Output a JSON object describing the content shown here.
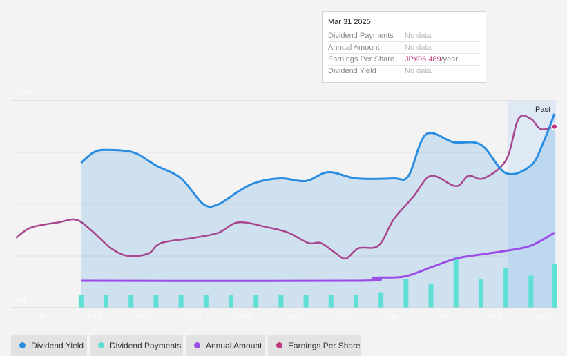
{
  "tooltip": {
    "date": "Mar 31 2025",
    "rows": [
      {
        "label": "Dividend Payments",
        "value": "No data"
      },
      {
        "label": "Annual Amount",
        "value": "No data"
      },
      {
        "label": "Earnings Per Share",
        "value": "JP¥96.489",
        "suffix": "/year"
      },
      {
        "label": "Dividend Yield",
        "value": "No data"
      }
    ]
  },
  "colors": {
    "dividend_yield": "#2a8de0",
    "dividend_payments": "#5fe0d6",
    "annual_amount": "#9b4de8",
    "earnings_per_share": "#a8458f",
    "eps_label": "#c2357c"
  },
  "legend": [
    {
      "label": "Dividend Yield",
      "color": "#2a8de0"
    },
    {
      "label": "Dividend Payments",
      "color": "#5fe0d6"
    },
    {
      "label": "Annual Amount",
      "color": "#9b4de8"
    },
    {
      "label": "Earnings Per Share",
      "color": "#c2357c"
    }
  ],
  "chart_data": {
    "type": "line",
    "y_axis": {
      "top_label": "4.0%",
      "bottom_label": "0%",
      "ylim": [
        0,
        4.0
      ],
      "unit": "%"
    },
    "x_axis": {
      "tick_labels": [
        "2015",
        "2016",
        "2017",
        "2018",
        "2019",
        "2020",
        "2021",
        "2022",
        "2023",
        "2024",
        "2025"
      ],
      "xlim": [
        2014.35,
        2025.25
      ]
    },
    "past_label": "Past",
    "past_start": 2024.28,
    "series": [
      {
        "name": "Dividend Yield",
        "unit": "%",
        "points": [
          [
            2015.75,
            2.8
          ],
          [
            2016.0,
            3.0
          ],
          [
            2016.25,
            3.05
          ],
          [
            2016.8,
            3.0
          ],
          [
            2017.25,
            2.75
          ],
          [
            2017.75,
            2.5
          ],
          [
            2018.2,
            2.0
          ],
          [
            2018.5,
            2.0
          ],
          [
            2018.9,
            2.25
          ],
          [
            2019.25,
            2.42
          ],
          [
            2019.75,
            2.5
          ],
          [
            2020.25,
            2.45
          ],
          [
            2020.7,
            2.62
          ],
          [
            2021.25,
            2.5
          ],
          [
            2022.0,
            2.5
          ],
          [
            2022.3,
            2.55
          ],
          [
            2022.65,
            3.35
          ],
          [
            2023.2,
            3.2
          ],
          [
            2023.75,
            3.15
          ],
          [
            2024.25,
            2.6
          ],
          [
            2024.75,
            2.75
          ],
          [
            2025.0,
            3.2
          ],
          [
            2025.22,
            3.75
          ]
        ]
      },
      {
        "name": "Earnings Per Share",
        "unit": "relative (axis not labeled)",
        "points": [
          [
            2014.45,
            1.35
          ],
          [
            2014.75,
            1.55
          ],
          [
            2015.3,
            1.65
          ],
          [
            2015.65,
            1.7
          ],
          [
            2015.95,
            1.5
          ],
          [
            2016.35,
            1.15
          ],
          [
            2016.7,
            1.0
          ],
          [
            2017.1,
            1.05
          ],
          [
            2017.35,
            1.25
          ],
          [
            2018.0,
            1.35
          ],
          [
            2018.5,
            1.45
          ],
          [
            2018.9,
            1.65
          ],
          [
            2019.5,
            1.55
          ],
          [
            2019.9,
            1.45
          ],
          [
            2020.3,
            1.25
          ],
          [
            2020.55,
            1.25
          ],
          [
            2020.85,
            1.05
          ],
          [
            2021.05,
            0.95
          ],
          [
            2021.3,
            1.15
          ],
          [
            2021.7,
            1.2
          ],
          [
            2022.0,
            1.7
          ],
          [
            2022.4,
            2.15
          ],
          [
            2022.75,
            2.55
          ],
          [
            2023.25,
            2.35
          ],
          [
            2023.5,
            2.55
          ],
          [
            2023.8,
            2.5
          ],
          [
            2024.25,
            2.85
          ],
          [
            2024.5,
            3.65
          ],
          [
            2024.75,
            3.65
          ],
          [
            2024.95,
            3.45
          ],
          [
            2025.22,
            3.5
          ]
        ]
      },
      {
        "name": "Annual Amount",
        "unit": "relative (axis not labeled)",
        "points": [
          [
            2015.75,
            0.52
          ],
          [
            2021.25,
            0.52
          ],
          [
            2021.6,
            0.58
          ],
          [
            2022.2,
            0.6
          ],
          [
            2022.75,
            0.78
          ],
          [
            2023.25,
            0.95
          ],
          [
            2023.75,
            1.03
          ],
          [
            2024.25,
            1.1
          ],
          [
            2024.75,
            1.2
          ],
          [
            2025.22,
            1.45
          ]
        ]
      },
      {
        "name": "Dividend Payments",
        "unit": "relative (axis not labeled)",
        "type": "bar",
        "points": [
          [
            2015.75,
            0.25
          ],
          [
            2016.25,
            0.25
          ],
          [
            2016.75,
            0.25
          ],
          [
            2017.25,
            0.25
          ],
          [
            2017.75,
            0.25
          ],
          [
            2018.25,
            0.25
          ],
          [
            2018.75,
            0.25
          ],
          [
            2019.25,
            0.25
          ],
          [
            2019.75,
            0.25
          ],
          [
            2020.25,
            0.25
          ],
          [
            2020.75,
            0.25
          ],
          [
            2021.25,
            0.25
          ],
          [
            2021.75,
            0.3
          ],
          [
            2022.25,
            0.55
          ],
          [
            2022.75,
            0.47
          ],
          [
            2023.25,
            0.98
          ],
          [
            2023.75,
            0.55
          ],
          [
            2024.25,
            0.77
          ],
          [
            2024.75,
            0.62
          ],
          [
            2025.22,
            0.85
          ]
        ]
      }
    ]
  }
}
